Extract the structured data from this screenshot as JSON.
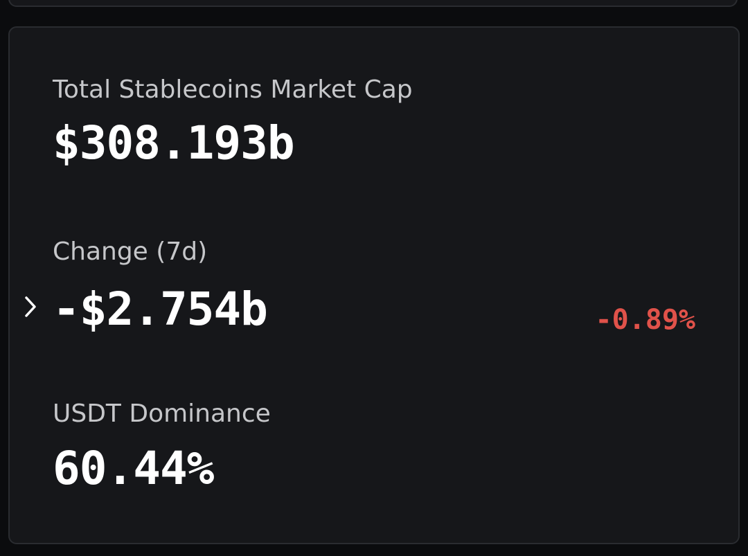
{
  "stats": [
    {
      "label": "Total Stablecoins Market Cap",
      "value": "$308.193b"
    },
    {
      "label": "Change (7d)",
      "value": "-$2.754b",
      "change": "-0.89%"
    },
    {
      "label": "USDT Dominance",
      "value": "60.44%"
    }
  ]
}
